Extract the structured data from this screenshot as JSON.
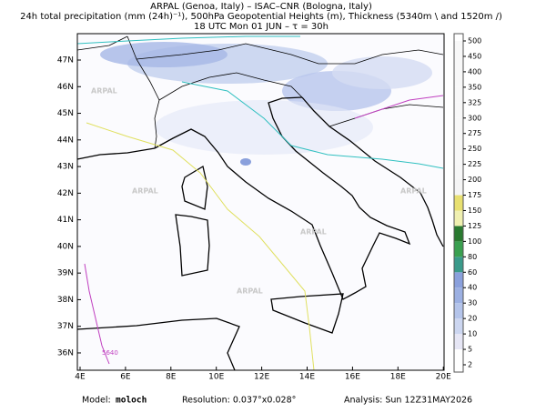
{
  "header": {
    "line1": "ARPAL (Genoa, Italy)  –  ISAC–CNR (Bologna, Italy)",
    "line2": "24h total precipitation (mm (24h)⁻¹), 500hPa Geopotential Heights (m), Thickness (5340m \\ and 1520m /)",
    "line3": "18 UTC Mon 01 JUN  –  τ = 30h"
  },
  "map": {
    "lon_ticks": [
      {
        "value": 4,
        "label": "4E"
      },
      {
        "value": 6,
        "label": "6E"
      },
      {
        "value": 8,
        "label": "8E"
      },
      {
        "value": 10,
        "label": "10E"
      },
      {
        "value": 12,
        "label": "12E"
      },
      {
        "value": 14,
        "label": "14E"
      },
      {
        "value": 16,
        "label": "16E"
      },
      {
        "value": 18,
        "label": "18E"
      },
      {
        "value": 20,
        "label": "20E"
      }
    ],
    "lat_ticks": [
      {
        "value": 47,
        "label": "47N"
      },
      {
        "value": 46,
        "label": "46N"
      },
      {
        "value": 45,
        "label": "45N"
      },
      {
        "value": 44,
        "label": "44N"
      },
      {
        "value": 43,
        "label": "43N"
      },
      {
        "value": 42,
        "label": "42N"
      },
      {
        "value": 41,
        "label": "41N"
      },
      {
        "value": 40,
        "label": "40N"
      },
      {
        "value": 39,
        "label": "39N"
      },
      {
        "value": 38,
        "label": "38N"
      },
      {
        "value": 37,
        "label": "37N"
      },
      {
        "value": 36,
        "label": "36N"
      }
    ],
    "watermark": "ARPAL",
    "contour_label": "5640"
  },
  "colorbar": {
    "levels": [
      2,
      5,
      10,
      20,
      30,
      40,
      60,
      80,
      100,
      125,
      150,
      175,
      200,
      225,
      250,
      275,
      300,
      325,
      350,
      400,
      450,
      500
    ],
    "colors": [
      "#ffffff",
      "#e6e6f5",
      "#ccd6f0",
      "#b4c4ea",
      "#9cb0e2",
      "#8aa0dc",
      "#3a9a8a",
      "#3aa050",
      "#2a7a30",
      "#f0f0b0",
      "#e8e070",
      "#f5f5f5",
      "#f7f7f7",
      "#f8f8f8",
      "#f8f8f8",
      "#f8f8f8",
      "#f8f8f8",
      "#f8f8f8",
      "#f8f8f8",
      "#f8f8f8",
      "#f8f8f8"
    ]
  },
  "footer": {
    "model_label": "Model:",
    "model": "moloch",
    "resolution": "Resolution: 0.037°x0.028°",
    "analysis": "Analysis: Sun 12Z31MAY2026"
  }
}
